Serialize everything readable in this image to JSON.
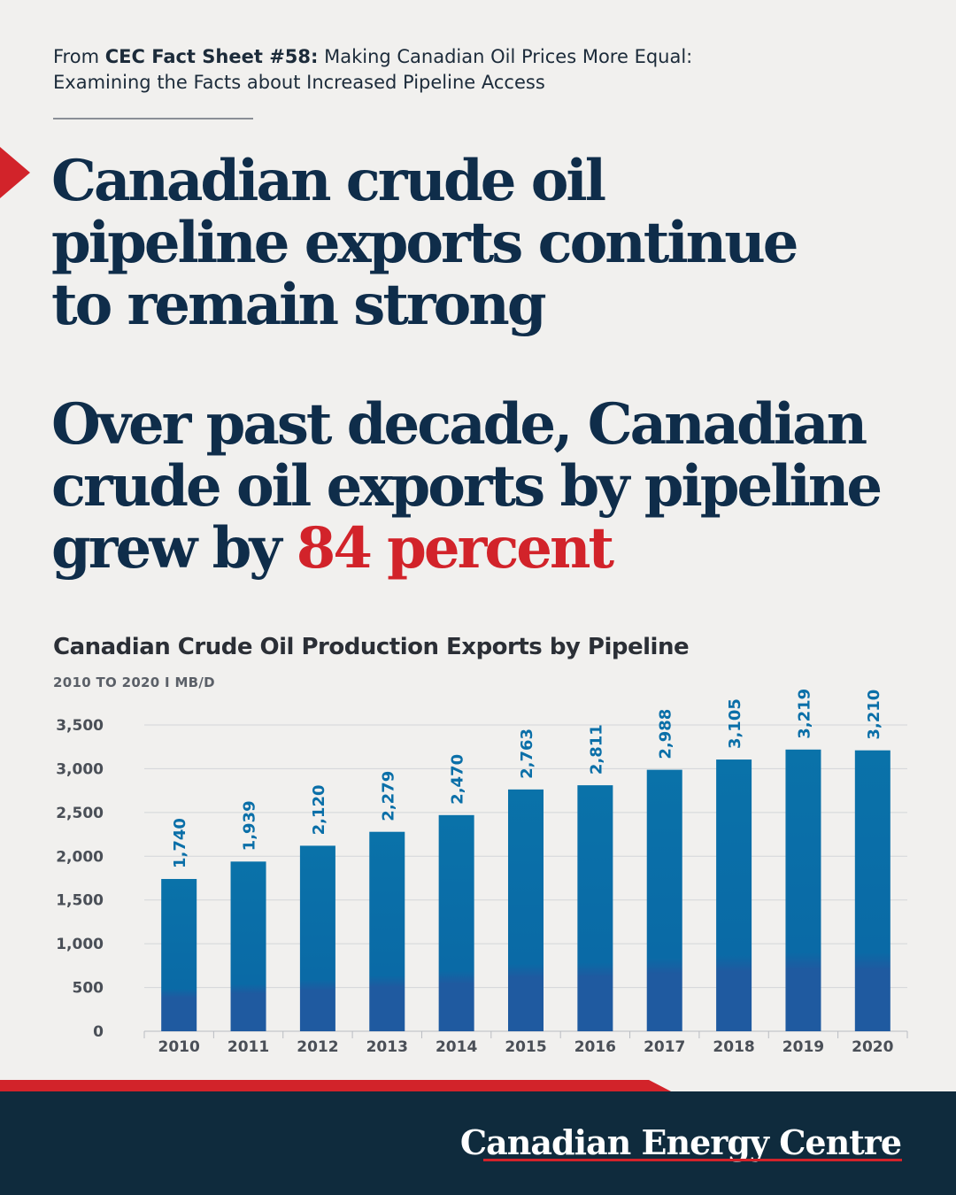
{
  "source": {
    "prefix": "From ",
    "sheet": "CEC Fact Sheet #58:",
    "line1_rest": " Making Canadian Oil Prices More Equal:",
    "line2": "Examining the Facts about Increased Pipeline Access"
  },
  "headline1": {
    "line1": "Canadian crude oil",
    "line2": "pipeline exports continue",
    "line3": "to remain strong"
  },
  "headline2": {
    "line1": "Over past decade, Canadian",
    "line2": "crude oil exports by pipeline",
    "line3_lead": "grew by ",
    "line3_accent": "84 percent"
  },
  "colors": {
    "navy": "#0f2d4a",
    "accent_red": "#d2232a",
    "bar_blue": "#0a72a9",
    "bar_blue_dark": "#1f5aa0",
    "footer_navy": "#0f2b3d"
  },
  "chart_data": {
    "type": "bar",
    "title": "Canadian Crude Oil Production Exports by Pipeline",
    "subtitle": "2010 TO 2020   I   MB/D",
    "categories": [
      "2010",
      "2011",
      "2012",
      "2013",
      "2014",
      "2015",
      "2016",
      "2017",
      "2018",
      "2019",
      "2020"
    ],
    "values": [
      1740,
      1939,
      2120,
      2279,
      2470,
      2763,
      2811,
      2988,
      3105,
      3219,
      3210
    ],
    "value_labels": [
      "1,740",
      "1,939",
      "2,120",
      "2,279",
      "2,470",
      "2,763",
      "2,811",
      "2,988",
      "3,105",
      "3,219",
      "3,210"
    ],
    "y_ticks": [
      "0",
      "500",
      "1,000",
      "1,500",
      "2,000",
      "2,500",
      "3,000",
      "3,500"
    ],
    "ylim": [
      0,
      3500
    ],
    "grid": true
  },
  "footer": {
    "brand": "Canadian Energy Centre"
  }
}
